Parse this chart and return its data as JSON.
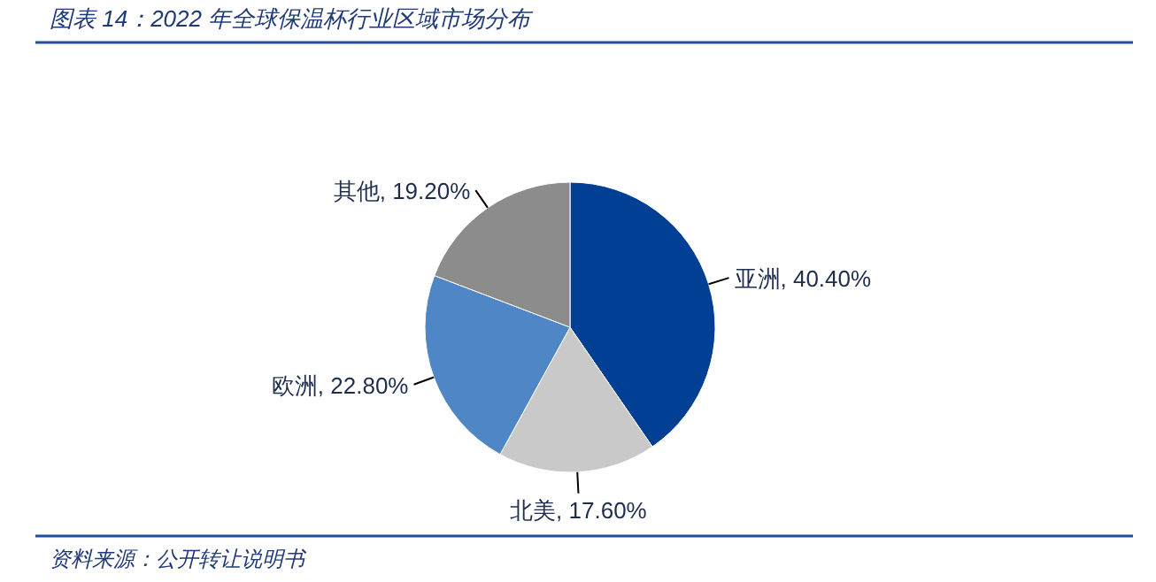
{
  "chart_data": {
    "type": "pie",
    "title": "图表 14：2022 年全球保温杯行业区域市场分布",
    "categories": [
      "亚洲",
      "北美",
      "欧洲",
      "其他"
    ],
    "values": [
      40.4,
      17.6,
      22.8,
      19.2
    ],
    "value_labels": [
      "40.40%",
      "17.60%",
      "22.80%",
      "19.20%"
    ],
    "colors": [
      "#003f94",
      "#c9c9c9",
      "#4f86c6",
      "#8c8c8c"
    ],
    "annotations": [
      "资料来源：公开转让说明书"
    ]
  }
}
